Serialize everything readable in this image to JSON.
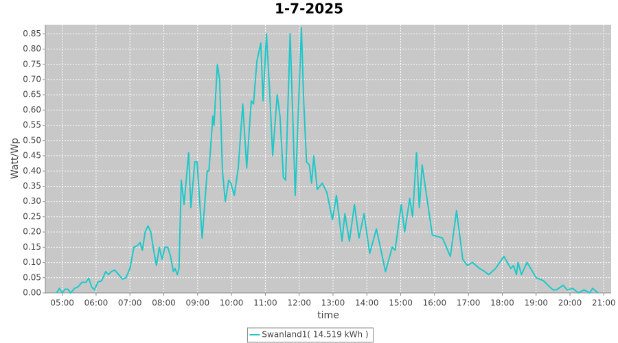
{
  "chart_data": {
    "type": "line",
    "title": "1-7-2025",
    "x_label": "time",
    "y_label": "Watt/Wp",
    "x": [
      "04:50",
      "04:55",
      "05:00",
      "05:05",
      "05:10",
      "05:15",
      "05:22",
      "05:28",
      "05:35",
      "05:42",
      "05:47",
      "05:52",
      "05:57",
      "06:03",
      "06:10",
      "06:17",
      "06:22",
      "06:27",
      "06:33",
      "06:40",
      "06:47",
      "06:53",
      "07:00",
      "07:07",
      "07:13",
      "07:18",
      "07:22",
      "07:27",
      "07:32",
      "07:37",
      "07:42",
      "07:47",
      "07:52",
      "07:57",
      "08:02",
      "08:07",
      "08:12",
      "08:17",
      "08:20",
      "08:24",
      "08:27",
      "08:31",
      "08:36",
      "08:44",
      "08:48",
      "08:55",
      "08:59",
      "09:08",
      "09:17",
      "09:20",
      "09:27",
      "09:29",
      "09:35",
      "09:39",
      "09:44",
      "09:49",
      "09:55",
      "09:59",
      "10:05",
      "10:12",
      "10:20",
      "10:27",
      "10:35",
      "10:39",
      "10:45",
      "10:52",
      "10:56",
      "11:02",
      "11:08",
      "11:13",
      "11:21",
      "11:26",
      "11:32",
      "11:36",
      "11:44",
      "11:53",
      "11:59",
      "12:04",
      "12:08",
      "12:13",
      "12:18",
      "12:22",
      "12:26",
      "12:32",
      "12:41",
      "12:49",
      "12:59",
      "13:06",
      "13:16",
      "13:21",
      "13:29",
      "13:38",
      "13:46",
      "13:55",
      "14:05",
      "14:17",
      "14:33",
      "14:45",
      "14:50",
      "15:01",
      "15:07",
      "15:16",
      "15:21",
      "15:28",
      "15:33",
      "15:38",
      "15:45",
      "15:56",
      "16:14",
      "16:28",
      "16:39",
      "16:50",
      "16:58",
      "17:07",
      "17:20",
      "17:29",
      "17:36",
      "17:48",
      "18:03",
      "18:15",
      "18:20",
      "18:25",
      "18:28",
      "18:34",
      "18:44",
      "19:00",
      "19:13",
      "19:24",
      "19:30",
      "19:36",
      "19:48",
      "19:55",
      "20:05",
      "20:15",
      "20:25",
      "20:35",
      "20:40",
      "20:50"
    ],
    "series": [
      {
        "name": "Swanland1( 14.519 kWh )",
        "color": "#1ec8c8",
        "values": [
          0.0,
          0.015,
          0.0,
          0.012,
          0.012,
          0.0,
          0.015,
          0.02,
          0.035,
          0.035,
          0.048,
          0.02,
          0.01,
          0.035,
          0.04,
          0.07,
          0.06,
          0.07,
          0.075,
          0.06,
          0.045,
          0.05,
          0.08,
          0.15,
          0.155,
          0.165,
          0.14,
          0.2,
          0.22,
          0.2,
          0.14,
          0.09,
          0.15,
          0.11,
          0.15,
          0.15,
          0.12,
          0.07,
          0.08,
          0.06,
          0.08,
          0.37,
          0.29,
          0.46,
          0.28,
          0.43,
          0.43,
          0.18,
          0.4,
          0.4,
          0.58,
          0.55,
          0.75,
          0.7,
          0.4,
          0.3,
          0.37,
          0.36,
          0.32,
          0.41,
          0.62,
          0.41,
          0.63,
          0.62,
          0.76,
          0.82,
          0.63,
          0.85,
          0.65,
          0.45,
          0.65,
          0.58,
          0.38,
          0.37,
          0.85,
          0.32,
          0.62,
          0.87,
          0.63,
          0.43,
          0.42,
          0.36,
          0.45,
          0.34,
          0.36,
          0.33,
          0.24,
          0.32,
          0.17,
          0.26,
          0.17,
          0.29,
          0.18,
          0.26,
          0.13,
          0.21,
          0.07,
          0.15,
          0.14,
          0.29,
          0.2,
          0.31,
          0.25,
          0.46,
          0.28,
          0.42,
          0.33,
          0.19,
          0.18,
          0.12,
          0.27,
          0.11,
          0.09,
          0.1,
          0.08,
          0.07,
          0.06,
          0.08,
          0.12,
          0.08,
          0.09,
          0.06,
          0.1,
          0.06,
          0.1,
          0.05,
          0.04,
          0.02,
          0.01,
          0.01,
          0.025,
          0.01,
          0.015,
          0.0,
          0.01,
          0.0,
          0.015,
          0.0
        ]
      }
    ],
    "xlim": [
      "04:30",
      "21:13"
    ],
    "xticks": [
      "05:00",
      "06:00",
      "07:00",
      "08:00",
      "09:00",
      "10:00",
      "11:00",
      "12:00",
      "13:00",
      "14:00",
      "15:00",
      "16:00",
      "17:00",
      "18:00",
      "19:00",
      "20:00",
      "21:00"
    ],
    "ylim": [
      0,
      0.88
    ],
    "yticks": [
      {
        "value": 0,
        "label": "0.00"
      },
      0.05,
      {
        "value": 0.1,
        "label": "0.10"
      },
      0.15,
      {
        "value": 0.2,
        "label": "0.20"
      },
      0.25,
      {
        "value": 0.3,
        "label": "0.30"
      },
      0.35,
      {
        "value": 0.4,
        "label": "0.40"
      },
      0.45,
      {
        "value": 0.5,
        "label": "0.50"
      },
      0.55,
      {
        "value": 0.6,
        "label": "0.60"
      },
      0.65,
      {
        "value": 0.7,
        "label": "0.70"
      },
      0.75,
      {
        "value": 0.8,
        "label": "0.80"
      },
      0.85
    ],
    "grid": true,
    "plot_background": "#c8c8c8",
    "legend": "bottom"
  }
}
